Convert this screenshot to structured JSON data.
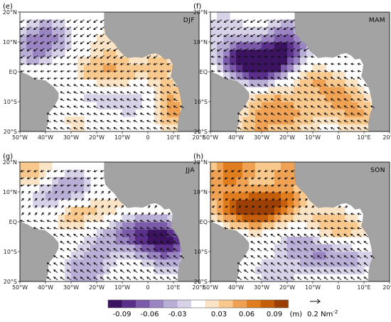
{
  "chart_data": {
    "type": "heatmap",
    "colorbar": {
      "tick_labels": [
        "-0.09",
        "-0.06",
        "-0.03",
        "0.03",
        "0.06",
        "0.09"
      ],
      "unit": "(m)",
      "colors": [
        "#3b1361",
        "#5a2f8a",
        "#7a5aa9",
        "#9a85c2",
        "#b9aed6",
        "#d8d2e8",
        "#ffffff",
        "#fbe3c6",
        "#f8c88d",
        "#f0a254",
        "#e07d1e",
        "#c45e0b",
        "#9c3f05"
      ]
    },
    "reference_arrow": {
      "label": "0.2 Nm",
      "exponent": "-2"
    },
    "x_ticks": [
      "50°W",
      "40°W",
      "30°W",
      "20°W",
      "10°W",
      "0",
      "10°E",
      "20°E"
    ],
    "y_ticks": [
      "20°N",
      "10°N",
      "EQ",
      "10°S",
      "20°S"
    ],
    "panels": [
      {
        "id": "e",
        "panel_label": "(e)",
        "season": "DJF",
        "wind": "ne",
        "anomalies": [
          {
            "lon": -40,
            "lat": 12,
            "v": -0.04
          },
          {
            "lon": -45,
            "lat": 7,
            "v": -0.03
          },
          {
            "lon": -15,
            "lat": 10,
            "v": 0.02
          },
          {
            "lon": -20,
            "lat": 0,
            "v": 0.03
          },
          {
            "lon": -10,
            "lat": 0,
            "v": 0.025
          },
          {
            "lon": 5,
            "lat": 2,
            "v": 0.025
          },
          {
            "lon": -20,
            "lat": -8,
            "v": -0.02
          },
          {
            "lon": -5,
            "lat": -10,
            "v": -0.025
          },
          {
            "lon": 8,
            "lat": -8,
            "v": 0.03
          },
          {
            "lon": 10,
            "lat": -14,
            "v": 0.03
          },
          {
            "lon": -28,
            "lat": -17,
            "v": 0.015
          }
        ]
      },
      {
        "id": "f",
        "panel_label": "(f)",
        "season": "MAM",
        "wind": "mam",
        "anomalies": [
          {
            "lon": -30,
            "lat": 2,
            "v": -0.09
          },
          {
            "lon": -38,
            "lat": 5,
            "v": -0.07
          },
          {
            "lon": -22,
            "lat": 6,
            "v": -0.06
          },
          {
            "lon": -20,
            "lat": 12,
            "v": -0.04
          },
          {
            "lon": -45,
            "lat": 15,
            "v": -0.02
          },
          {
            "lon": -10,
            "lat": -3,
            "v": 0.03
          },
          {
            "lon": 0,
            "lat": -8,
            "v": 0.04
          },
          {
            "lon": -25,
            "lat": -10,
            "v": 0.035
          },
          {
            "lon": -30,
            "lat": -17,
            "v": 0.04
          },
          {
            "lon": 8,
            "lat": -15,
            "v": 0.035
          },
          {
            "lon": -15,
            "lat": -15,
            "v": 0.03
          }
        ]
      },
      {
        "id": "g",
        "panel_label": "(g)",
        "season": "JJA",
        "wind": "jja",
        "anomalies": [
          {
            "lon": -45,
            "lat": 17,
            "v": 0.03
          },
          {
            "lon": -30,
            "lat": 12,
            "v": -0.03
          },
          {
            "lon": -38,
            "lat": 8,
            "v": -0.025
          },
          {
            "lon": -30,
            "lat": 3,
            "v": 0.03
          },
          {
            "lon": -15,
            "lat": 3,
            "v": 0.025
          },
          {
            "lon": -10,
            "lat": -3,
            "v": -0.04
          },
          {
            "lon": 0,
            "lat": -5,
            "v": -0.05
          },
          {
            "lon": 8,
            "lat": -5,
            "v": -0.06
          },
          {
            "lon": 8,
            "lat": -12,
            "v": -0.03
          },
          {
            "lon": -25,
            "lat": -17,
            "v": -0.03
          },
          {
            "lon": -20,
            "lat": -10,
            "v": -0.02
          }
        ]
      },
      {
        "id": "h",
        "panel_label": "(h)",
        "season": "SON",
        "wind": "son",
        "anomalies": [
          {
            "lon": -30,
            "lat": 4,
            "v": 0.08
          },
          {
            "lon": -40,
            "lat": 5,
            "v": 0.06
          },
          {
            "lon": -22,
            "lat": 8,
            "v": 0.05
          },
          {
            "lon": -40,
            "lat": 18,
            "v": 0.06
          },
          {
            "lon": -18,
            "lat": 18,
            "v": 0.05
          },
          {
            "lon": -48,
            "lat": 12,
            "v": 0.03
          },
          {
            "lon": -5,
            "lat": 0,
            "v": 0.03
          },
          {
            "lon": 5,
            "lat": -3,
            "v": 0.02
          },
          {
            "lon": -15,
            "lat": -8,
            "v": -0.03
          },
          {
            "lon": -5,
            "lat": -12,
            "v": -0.03
          },
          {
            "lon": 8,
            "lat": -12,
            "v": -0.02
          },
          {
            "lon": -25,
            "lat": -17,
            "v": -0.02
          }
        ]
      }
    ]
  }
}
